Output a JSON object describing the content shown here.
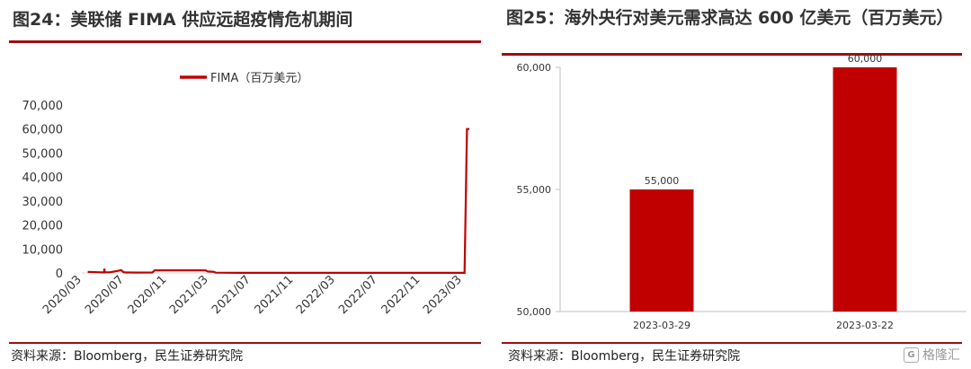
{
  "left_panel": {
    "title": "图24：美联储 FIMA 供应远超疫情危机期间",
    "source": "资料来源：Bloomberg，民生证券研究院"
  },
  "right_panel": {
    "title": "图25：海外央行对美元需求高达 600 亿美元（百万美元）",
    "source": "资料来源：Bloomberg，民生证券研究院"
  },
  "watermark": {
    "icon": "gelonghui-logo-icon",
    "text": "格隆汇"
  },
  "colors": {
    "accent": "#c00000",
    "rule": "#9b0f12"
  },
  "chart_data": [
    {
      "type": "line",
      "legend": "FIMA（百万美元）",
      "legend_position": "top-center",
      "ylim": [
        0,
        70000
      ],
      "yticks": [
        "0",
        "10,000",
        "20,000",
        "30,000",
        "40,000",
        "50,000",
        "60,000",
        "70,000"
      ],
      "xticks": [
        "2020/03",
        "2020/07",
        "2020/11",
        "2021/03",
        "2021/07",
        "2021/11",
        "2022/03",
        "2022/07",
        "2022/11",
        "2023/03"
      ],
      "grid": false,
      "series": [
        {
          "name": "FIMA（百万美元）",
          "x": [
            "2020-03-18",
            "2020-04-15",
            "2020-05-04",
            "2020-05-05",
            "2020-05-06",
            "2020-05-20",
            "2020-06-15",
            "2020-06-22",
            "2020-06-29",
            "2020-07-06",
            "2020-07-13",
            "2020-08-10",
            "2020-09-20",
            "2020-09-27",
            "2020-10-15",
            "2020-12-01",
            "2021-01-15",
            "2021-02-20",
            "2021-02-27",
            "2021-03-15",
            "2021-03-22",
            "2021-06-01",
            "2021-12-01",
            "2022-06-01",
            "2022-12-01",
            "2023-03-08",
            "2023-03-15",
            "2023-03-22"
          ],
          "values": [
            400,
            300,
            200,
            1800,
            300,
            250,
            900,
            1200,
            300,
            200,
            200,
            150,
            200,
            1100,
            1100,
            1100,
            1100,
            1100,
            600,
            500,
            100,
            50,
            50,
            50,
            50,
            50,
            60000,
            60000
          ]
        }
      ]
    },
    {
      "type": "bar",
      "categories": [
        "2023-03-29",
        "2023-03-22"
      ],
      "values": [
        55000,
        60000
      ],
      "data_labels": [
        "55,000",
        "60,000"
      ],
      "ylim": [
        50000,
        60000
      ],
      "yticks": [
        "50,000",
        "55,000",
        "60,000"
      ],
      "grid": false
    }
  ]
}
